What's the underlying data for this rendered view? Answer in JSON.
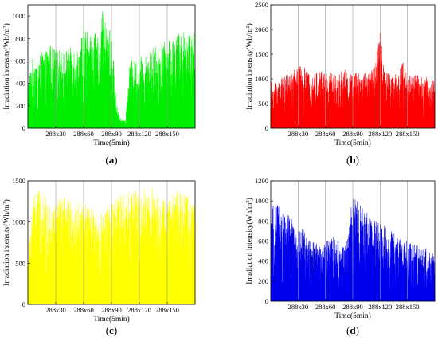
{
  "chart_data": [
    {
      "type": "area",
      "panel_label": "a",
      "color": "#00ee00",
      "xlabel": "Time(5min)",
      "ylabel": "Irradiation intensity(Wh/m²)",
      "ylabel_parts": {
        "main": "Irradiation intensity(Wh/m",
        "sup": "2",
        "close": ")"
      },
      "x_tick_labels": [
        "288x30",
        "288x60",
        "288x90",
        "288x120",
        "288x150"
      ],
      "x_tick_days": [
        30,
        60,
        90,
        120,
        150
      ],
      "x_range_days": [
        0,
        180
      ],
      "ylim": [
        0,
        1100
      ],
      "yticks": [
        0,
        200,
        400,
        600,
        800,
        1000
      ],
      "grid": "vertical",
      "envelope": {
        "days": [
          0,
          5,
          10,
          15,
          20,
          25,
          30,
          35,
          40,
          45,
          50,
          55,
          60,
          65,
          70,
          75,
          80,
          85,
          90,
          95,
          100,
          105,
          110,
          115,
          120,
          125,
          130,
          135,
          140,
          145,
          150,
          155,
          160,
          165,
          170,
          175,
          180
        ],
        "daily_peak": [
          420,
          620,
          640,
          680,
          700,
          760,
          700,
          700,
          690,
          720,
          720,
          700,
          920,
          880,
          860,
          820,
          1050,
          900,
          880,
          250,
          80,
          80,
          620,
          600,
          640,
          660,
          700,
          730,
          760,
          760,
          780,
          800,
          840,
          870,
          880,
          880,
          870
        ]
      }
    },
    {
      "type": "area",
      "panel_label": "b",
      "color": "#ff0000",
      "xlabel": "Time(5min)",
      "ylabel": "Irradiation intensity(Wh/m²)",
      "ylabel_parts": {
        "main": "Irradiation intensity(Wh/m",
        "sup": "2",
        "close": ")"
      },
      "x_tick_labels": [
        "288x30",
        "288x60",
        "288x90",
        "288x120",
        "288x150"
      ],
      "x_tick_days": [
        30,
        60,
        90,
        120,
        150
      ],
      "x_range_days": [
        0,
        180
      ],
      "ylim": [
        0,
        2500
      ],
      "yticks": [
        0,
        500,
        1000,
        1500,
        2000,
        2500
      ],
      "grid": "vertical",
      "envelope": {
        "days": [
          0,
          5,
          10,
          15,
          20,
          25,
          30,
          35,
          40,
          45,
          50,
          55,
          60,
          65,
          70,
          75,
          80,
          85,
          90,
          95,
          100,
          105,
          110,
          115,
          120,
          125,
          130,
          135,
          140,
          145,
          150,
          155,
          160,
          165,
          170,
          175,
          180
        ],
        "daily_peak": [
          950,
          980,
          1000,
          1050,
          1100,
          1200,
          1250,
          1300,
          1150,
          1100,
          1150,
          1200,
          1200,
          1150,
          1100,
          1150,
          1200,
          1150,
          1100,
          1150,
          1100,
          1200,
          1150,
          1300,
          2100,
          1200,
          1150,
          1100,
          1150,
          1400,
          1100,
          1050,
          1100,
          1050,
          1100,
          1000,
          950
        ]
      }
    },
    {
      "type": "area",
      "panel_label": "c",
      "color": "#ffff00",
      "xlabel": "Time(5min)",
      "ylabel": "Irradiation intensity(Wh/m²)",
      "ylabel_parts": {
        "main": "Irradiation intensity(Wh/m",
        "sup": "2",
        "close": ")"
      },
      "x_tick_labels": [
        "288x30",
        "288x60",
        "288x90",
        "288x120",
        "288x150"
      ],
      "x_tick_days": [
        30,
        60,
        90,
        120,
        150
      ],
      "x_range_days": [
        0,
        180
      ],
      "ylim": [
        0,
        1500
      ],
      "yticks": [
        0,
        500,
        1000,
        1500
      ],
      "grid": "vertical",
      "envelope": {
        "days": [
          0,
          5,
          10,
          15,
          20,
          25,
          30,
          35,
          40,
          45,
          50,
          55,
          60,
          65,
          70,
          75,
          80,
          85,
          90,
          95,
          100,
          105,
          110,
          115,
          120,
          125,
          130,
          135,
          140,
          145,
          150,
          155,
          160,
          165,
          170,
          175,
          180
        ],
        "daily_peak": [
          600,
          1250,
          1400,
          1350,
          1300,
          1250,
          1200,
          1350,
          1300,
          1250,
          1200,
          1250,
          1250,
          1200,
          1150,
          1150,
          1100,
          1200,
          1250,
          1300,
          1350,
          1350,
          1400,
          1400,
          1350,
          1400,
          1450,
          1400,
          1350,
          1300,
          1250,
          1300,
          1400,
          1450,
          1350,
          1300,
          1250
        ]
      }
    },
    {
      "type": "area",
      "panel_label": "d",
      "color": "#0000ee",
      "xlabel": "Time(5min)",
      "ylabel": "Irradiation intensity(Wh/m²)",
      "ylabel_parts": {
        "main": "Irradiation intensity(Wh/m",
        "sup": "2",
        "close": ")"
      },
      "x_tick_labels": [
        "288x30",
        "288x60",
        "288x90",
        "288x120",
        "288x150"
      ],
      "x_tick_days": [
        30,
        60,
        90,
        120,
        150
      ],
      "x_range_days": [
        0,
        180
      ],
      "ylim": [
        0,
        1200
      ],
      "yticks": [
        0,
        200,
        400,
        600,
        800,
        1000,
        1200
      ],
      "grid": "vertical",
      "envelope": {
        "days": [
          0,
          5,
          10,
          15,
          20,
          25,
          30,
          35,
          40,
          45,
          50,
          55,
          60,
          65,
          70,
          75,
          80,
          85,
          90,
          95,
          100,
          105,
          110,
          115,
          120,
          125,
          130,
          135,
          140,
          145,
          150,
          155,
          160,
          165,
          170,
          175,
          180
        ],
        "daily_peak": [
          950,
          980,
          950,
          900,
          850,
          800,
          700,
          750,
          650,
          600,
          580,
          550,
          600,
          620,
          650,
          600,
          550,
          700,
          1100,
          1000,
          950,
          900,
          850,
          800,
          780,
          750,
          720,
          700,
          650,
          620,
          600,
          580,
          560,
          550,
          530,
          500,
          480
        ]
      }
    }
  ]
}
